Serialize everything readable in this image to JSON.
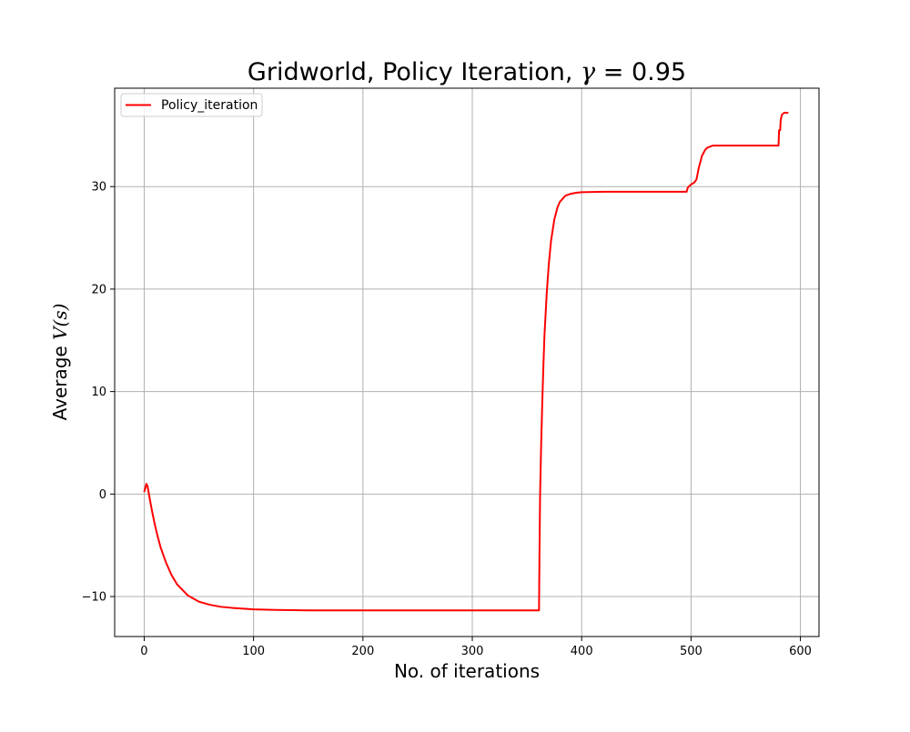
{
  "figure": {
    "title_prefix": "Gridworld, Policy Iteration, ",
    "title_gamma": "γ",
    "title_suffix": " = 0.95"
  },
  "chart_data": {
    "type": "line",
    "title": "Gridworld, Policy Iteration, γ = 0.95",
    "xlabel": "No. of iterations",
    "ylabel_prefix": "Average ",
    "ylabel_math": "V(s)",
    "xlim": [
      -27,
      617
    ],
    "ylim": [
      -13.9,
      39.6
    ],
    "x_ticks": [
      0,
      100,
      200,
      300,
      400,
      500,
      600
    ],
    "y_ticks": [
      -10,
      0,
      10,
      20,
      30
    ],
    "y_tick_labels": [
      "−10",
      "0",
      "10",
      "20",
      "30"
    ],
    "grid": true,
    "legend": {
      "position": "top-left",
      "entries": [
        "Policy_iteration"
      ]
    },
    "series": [
      {
        "name": "Policy_iteration",
        "color": "#ff0000",
        "x": [
          0,
          2,
          3,
          4,
          6,
          8,
          10,
          12,
          15,
          20,
          25,
          30,
          40,
          50,
          60,
          70,
          80,
          100,
          120,
          150,
          200,
          250,
          300,
          361,
          361.5,
          362,
          363,
          364,
          365,
          366,
          368,
          370,
          372,
          375,
          378,
          380,
          385,
          390,
          395,
          400,
          420,
          450,
          496,
          497,
          500,
          503,
          505,
          507,
          510,
          513,
          515,
          520,
          530,
          550,
          580,
          580.5,
          581,
          581.5,
          582,
          583,
          584,
          585,
          586,
          587,
          589
        ],
        "y": [
          0.2,
          1.0,
          0.8,
          0.2,
          -1.0,
          -2.1,
          -3.1,
          -4.0,
          -5.2,
          -6.7,
          -7.9,
          -8.8,
          -9.9,
          -10.5,
          -10.8,
          -11.0,
          -11.1,
          -11.25,
          -11.3,
          -11.35,
          -11.35,
          -11.35,
          -11.35,
          -11.35,
          -5.0,
          0.0,
          5.0,
          9.0,
          12.5,
          15.5,
          19.5,
          22.5,
          24.7,
          26.8,
          28.0,
          28.5,
          29.1,
          29.3,
          29.4,
          29.45,
          29.5,
          29.5,
          29.5,
          29.9,
          30.2,
          30.4,
          30.7,
          31.8,
          33.0,
          33.6,
          33.8,
          34.0,
          34.0,
          34.0,
          34.0,
          35.5,
          35.5,
          35.5,
          36.5,
          37.0,
          37.1,
          37.2,
          37.2,
          37.2,
          37.2
        ]
      }
    ]
  }
}
